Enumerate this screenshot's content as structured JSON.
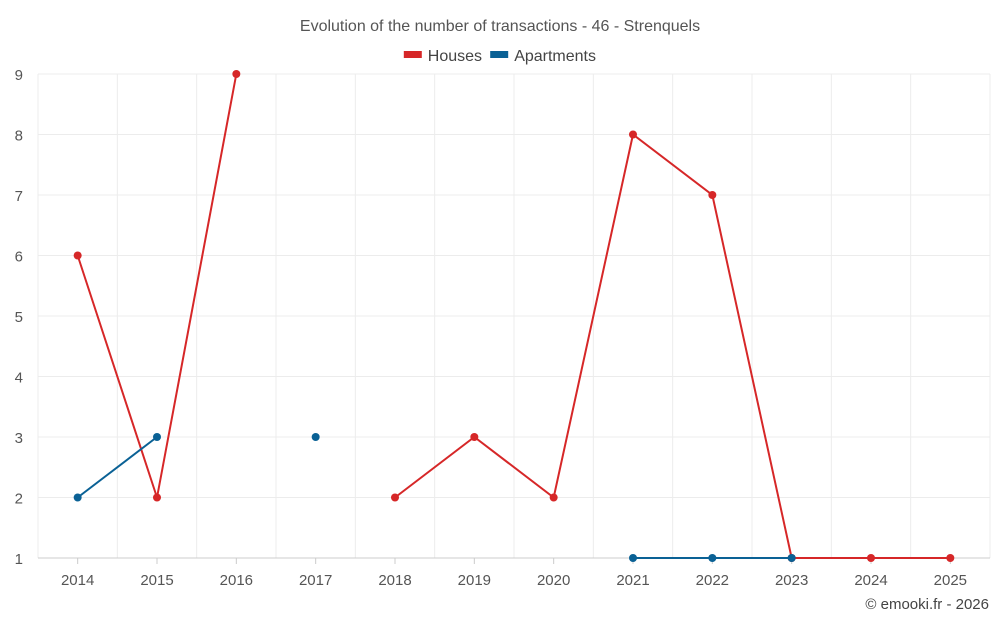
{
  "chart_data": {
    "type": "line",
    "title": "Evolution of the number of transactions - 46 - Strenquels",
    "categories": [
      "2014",
      "2015",
      "2016",
      "2017",
      "2018",
      "2019",
      "2020",
      "2021",
      "2022",
      "2023",
      "2024",
      "2025"
    ],
    "series": [
      {
        "name": "Houses",
        "color": "#d62728",
        "values": [
          6,
          2,
          9,
          null,
          2,
          3,
          2,
          8,
          7,
          1,
          1,
          1
        ]
      },
      {
        "name": "Apartments",
        "color": "#0a6195",
        "values": [
          2,
          3,
          null,
          3,
          null,
          null,
          null,
          1,
          1,
          1,
          null,
          null
        ]
      }
    ],
    "ylim": [
      1,
      9
    ],
    "yticks": [
      1,
      2,
      3,
      4,
      5,
      6,
      7,
      8,
      9
    ],
    "grid": true,
    "legend": "top-center"
  },
  "credit": "© emooki.fr - 2026"
}
